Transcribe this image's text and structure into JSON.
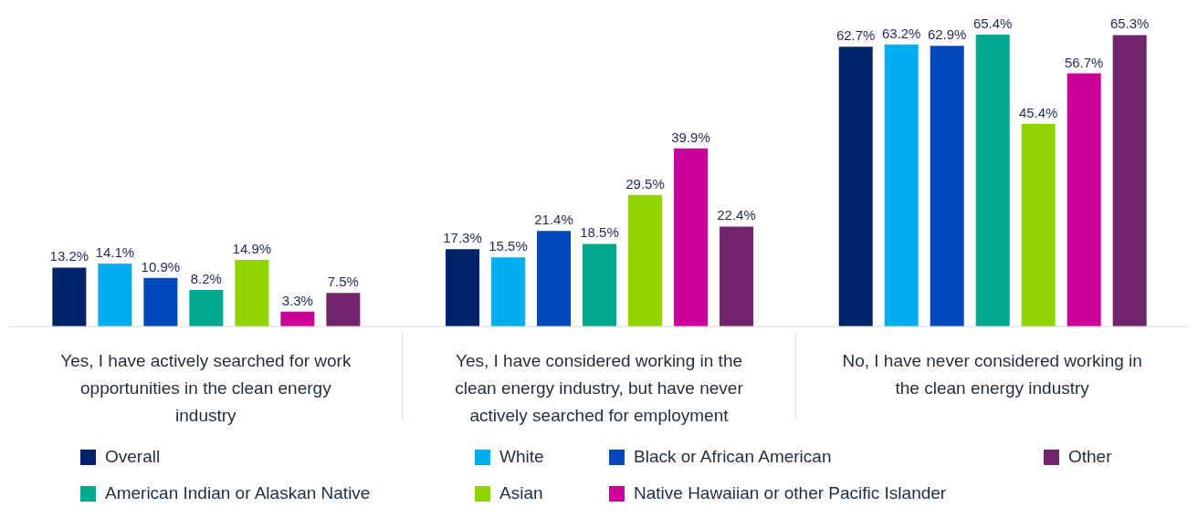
{
  "chart_data": {
    "type": "bar",
    "categories": [
      "Yes, I have actively searched for work opportunities in the clean energy industry",
      "Yes, I have considered working in the clean energy industry, but have never actively searched for employment",
      "No, I have never considered working in the clean energy industry"
    ],
    "series": [
      {
        "name": "Overall",
        "color": "#002469",
        "values": [
          13.2,
          17.3,
          62.7
        ],
        "value_labels": [
          "13.2%",
          "17.3%",
          "62.7%"
        ]
      },
      {
        "name": "White",
        "color": "#00aeef",
        "values": [
          14.1,
          15.5,
          63.2
        ],
        "value_labels": [
          "14.1%",
          "15.5%",
          "63.2%"
        ]
      },
      {
        "name": "Black or African American",
        "color": "#0047bb",
        "values": [
          10.9,
          21.4,
          62.9
        ],
        "value_labels": [
          "10.9%",
          "21.4%",
          "62.9%"
        ]
      },
      {
        "name": "American Indian or Alaskan Native",
        "color": "#00a88f",
        "values": [
          8.2,
          18.5,
          65.4
        ],
        "value_labels": [
          "8.2%",
          "18.5%",
          "65.4%"
        ]
      },
      {
        "name": "Asian",
        "color": "#8fd400",
        "values": [
          14.9,
          29.5,
          45.4
        ],
        "value_labels": [
          "14.9%",
          "29.5%",
          "45.4%"
        ]
      },
      {
        "name": "Native Hawaiian or other Pacific Islander",
        "color": "#cc0099",
        "values": [
          3.3,
          39.9,
          56.7
        ],
        "value_labels": [
          "3.3%",
          "39.9%",
          "56.7%"
        ]
      },
      {
        "name": "Other",
        "color": "#72246c",
        "values": [
          7.5,
          22.4,
          65.3
        ],
        "value_labels": [
          "7.5%",
          "22.4%",
          "65.3%"
        ]
      }
    ],
    "legend": "bottom"
  }
}
